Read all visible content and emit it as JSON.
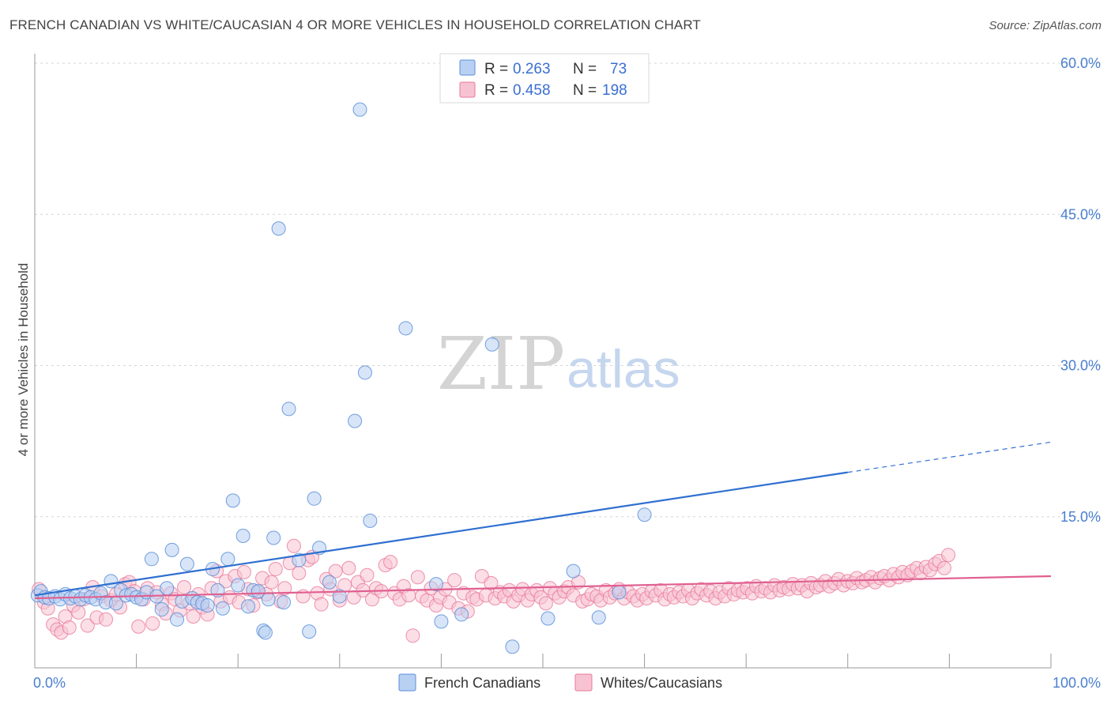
{
  "header": {
    "title": "FRENCH CANADIAN VS WHITE/CAUCASIAN 4 OR MORE VEHICLES IN HOUSEHOLD CORRELATION CHART",
    "source": "Source: ZipAtlas.com"
  },
  "watermark": {
    "zip": "ZIP",
    "atlas": "atlas"
  },
  "legend": {
    "rows": [
      {
        "r_label": "R =",
        "r_value": "0.263",
        "n_label": "N =",
        "n_value": "73"
      },
      {
        "r_label": "R =",
        "r_value": "0.458",
        "n_label": "N =",
        "n_value": "198"
      }
    ]
  },
  "bottom_legend": [
    "French Canadians",
    "Whites/Caucasians"
  ],
  "colors": {
    "blue": "#5b8fd8",
    "blue_fill": "#b8d0f2",
    "pink": "#e8789a",
    "pink_fill": "#f7c3d2",
    "blue_line": "#2f6fd0",
    "pink_line": "#e06090"
  },
  "chart_data": {
    "type": "scatter",
    "xlabel": "",
    "ylabel": "4 or more Vehicles in Household",
    "xlim": [
      0,
      100
    ],
    "ylim": [
      0,
      60
    ],
    "x_tick_labels": [
      "0.0%",
      "100.0%"
    ],
    "y_ticks": [
      15,
      30,
      45,
      60
    ],
    "y_tick_labels": [
      "15.0%",
      "30.0%",
      "45.0%",
      "60.0%"
    ],
    "grid": true,
    "series": [
      {
        "name": "French Canadians",
        "r": 0.263,
        "n": 73,
        "trend": {
          "x0": 0,
          "y0": 7.2,
          "x1": 80,
          "y1": 19.4,
          "dash_to_x": 100,
          "dash_to_y": 22.4
        },
        "points": [
          [
            0.3,
            7.2
          ],
          [
            0.6,
            7.6
          ],
          [
            1.0,
            7.0
          ],
          [
            1.4,
            6.9
          ],
          [
            2.0,
            7.1
          ],
          [
            2.5,
            6.8
          ],
          [
            3.0,
            7.3
          ],
          [
            3.5,
            6.9
          ],
          [
            4.0,
            7.1
          ],
          [
            4.5,
            6.8
          ],
          [
            5.0,
            7.2
          ],
          [
            5.5,
            7.0
          ],
          [
            6.0,
            6.8
          ],
          [
            6.5,
            7.4
          ],
          [
            7.0,
            6.5
          ],
          [
            7.5,
            8.6
          ],
          [
            8.0,
            6.4
          ],
          [
            8.5,
            7.7
          ],
          [
            9.0,
            7.2
          ],
          [
            9.5,
            7.3
          ],
          [
            10.0,
            7.0
          ],
          [
            10.5,
            6.8
          ],
          [
            11.0,
            7.5
          ],
          [
            11.5,
            10.8
          ],
          [
            12.0,
            7.1
          ],
          [
            12.5,
            5.8
          ],
          [
            13.0,
            7.9
          ],
          [
            13.5,
            11.7
          ],
          [
            14.0,
            4.8
          ],
          [
            14.5,
            6.6
          ],
          [
            15.0,
            10.3
          ],
          [
            15.5,
            6.9
          ],
          [
            16.0,
            6.5
          ],
          [
            16.5,
            6.4
          ],
          [
            17.0,
            6.2
          ],
          [
            17.5,
            9.8
          ],
          [
            18.0,
            7.7
          ],
          [
            18.5,
            5.9
          ],
          [
            19.0,
            10.8
          ],
          [
            19.5,
            16.6
          ],
          [
            20.0,
            8.2
          ],
          [
            20.5,
            13.1
          ],
          [
            21.0,
            6.1
          ],
          [
            21.5,
            7.7
          ],
          [
            22.0,
            7.6
          ],
          [
            22.5,
            3.7
          ],
          [
            22.7,
            3.5
          ],
          [
            23.0,
            6.8
          ],
          [
            23.5,
            12.9
          ],
          [
            24.0,
            43.6
          ],
          [
            24.5,
            6.5
          ],
          [
            25.0,
            25.7
          ],
          [
            26.0,
            10.7
          ],
          [
            27.0,
            3.6
          ],
          [
            27.5,
            16.8
          ],
          [
            28.0,
            11.9
          ],
          [
            29.0,
            8.5
          ],
          [
            30.0,
            7.1
          ],
          [
            31.5,
            24.5
          ],
          [
            32.0,
            55.4
          ],
          [
            32.5,
            29.3
          ],
          [
            33.0,
            14.6
          ],
          [
            36.5,
            33.7
          ],
          [
            39.5,
            8.3
          ],
          [
            40.0,
            4.6
          ],
          [
            42.0,
            5.3
          ],
          [
            45.0,
            32.1
          ],
          [
            47.0,
            2.1
          ],
          [
            50.5,
            4.9
          ],
          [
            53.0,
            9.6
          ],
          [
            55.5,
            5.0
          ],
          [
            57.5,
            7.5
          ],
          [
            60.0,
            15.2
          ]
        ]
      },
      {
        "name": "Whites/Caucasians",
        "r": 0.458,
        "n": 198,
        "trend": {
          "x0": 0,
          "y0": 6.9,
          "x1": 100,
          "y1": 9.1
        },
        "points": [
          [
            0.4,
            7.8
          ],
          [
            0.9,
            6.5
          ],
          [
            1.3,
            5.9
          ],
          [
            1.8,
            4.3
          ],
          [
            2.2,
            3.8
          ],
          [
            2.6,
            3.5
          ],
          [
            3.0,
            5.1
          ],
          [
            3.4,
            4.0
          ],
          [
            3.8,
            6.2
          ],
          [
            4.3,
            5.5
          ],
          [
            4.8,
            6.8
          ],
          [
            5.2,
            4.2
          ],
          [
            5.7,
            8.0
          ],
          [
            6.1,
            5.0
          ],
          [
            6.6,
            7.1
          ],
          [
            7.0,
            4.8
          ],
          [
            7.5,
            6.7
          ],
          [
            8.0,
            7.3
          ],
          [
            8.4,
            6.0
          ],
          [
            8.9,
            8.3
          ],
          [
            9.3,
            8.5
          ],
          [
            9.8,
            7.6
          ],
          [
            10.2,
            4.1
          ],
          [
            10.7,
            6.8
          ],
          [
            11.1,
            7.9
          ],
          [
            11.6,
            4.4
          ],
          [
            12.0,
            7.5
          ],
          [
            12.5,
            6.3
          ],
          [
            12.9,
            5.4
          ],
          [
            13.4,
            7.4
          ],
          [
            13.8,
            6.8
          ],
          [
            14.3,
            5.7
          ],
          [
            14.7,
            8.0
          ],
          [
            15.2,
            6.4
          ],
          [
            15.6,
            5.1
          ],
          [
            16.1,
            7.3
          ],
          [
            16.5,
            6.0
          ],
          [
            17.0,
            5.3
          ],
          [
            17.4,
            7.9
          ],
          [
            17.9,
            9.6
          ],
          [
            18.3,
            6.6
          ],
          [
            18.8,
            8.6
          ],
          [
            19.2,
            7.0
          ],
          [
            19.7,
            9.1
          ],
          [
            20.1,
            6.5
          ],
          [
            20.6,
            9.5
          ],
          [
            21.0,
            7.8
          ],
          [
            21.5,
            6.2
          ],
          [
            21.9,
            7.5
          ],
          [
            22.4,
            8.9
          ],
          [
            22.8,
            7.3
          ],
          [
            23.3,
            8.5
          ],
          [
            23.7,
            9.8
          ],
          [
            24.2,
            6.6
          ],
          [
            24.6,
            7.9
          ],
          [
            25.1,
            10.4
          ],
          [
            25.5,
            12.1
          ],
          [
            26.0,
            9.4
          ],
          [
            26.4,
            7.1
          ],
          [
            26.9,
            10.7
          ],
          [
            27.3,
            11.0
          ],
          [
            27.8,
            7.4
          ],
          [
            28.2,
            6.3
          ],
          [
            28.7,
            8.8
          ],
          [
            29.1,
            7.8
          ],
          [
            29.6,
            9.6
          ],
          [
            30.0,
            6.7
          ],
          [
            30.5,
            8.2
          ],
          [
            30.9,
            9.9
          ],
          [
            31.4,
            7.0
          ],
          [
            31.8,
            8.5
          ],
          [
            32.3,
            7.7
          ],
          [
            32.7,
            9.2
          ],
          [
            33.2,
            6.8
          ],
          [
            33.6,
            7.9
          ],
          [
            34.1,
            7.6
          ],
          [
            34.5,
            10.2
          ],
          [
            35.0,
            10.5
          ],
          [
            35.4,
            7.4
          ],
          [
            35.9,
            6.8
          ],
          [
            36.3,
            8.1
          ],
          [
            36.8,
            7.2
          ],
          [
            37.2,
            3.2
          ],
          [
            37.7,
            9.0
          ],
          [
            38.1,
            7.1
          ],
          [
            38.6,
            6.7
          ],
          [
            39.0,
            7.9
          ],
          [
            39.5,
            6.2
          ],
          [
            39.9,
            7.0
          ],
          [
            40.4,
            7.8
          ],
          [
            40.8,
            6.5
          ],
          [
            41.3,
            8.7
          ],
          [
            41.7,
            5.9
          ],
          [
            42.2,
            7.4
          ],
          [
            42.6,
            5.6
          ],
          [
            43.1,
            7.0
          ],
          [
            43.5,
            6.8
          ],
          [
            44.0,
            9.1
          ],
          [
            44.4,
            7.2
          ],
          [
            44.9,
            8.4
          ],
          [
            45.3,
            6.9
          ],
          [
            45.8,
            7.5
          ],
          [
            46.2,
            7.1
          ],
          [
            46.7,
            7.7
          ],
          [
            47.1,
            6.6
          ],
          [
            47.6,
            7.2
          ],
          [
            48.0,
            7.8
          ],
          [
            48.5,
            6.7
          ],
          [
            48.9,
            7.3
          ],
          [
            49.4,
            7.7
          ],
          [
            49.8,
            7.0
          ],
          [
            50.3,
            6.4
          ],
          [
            50.7,
            7.9
          ],
          [
            51.2,
            7.4
          ],
          [
            51.6,
            7.0
          ],
          [
            52.1,
            7.6
          ],
          [
            52.5,
            8.0
          ],
          [
            53.0,
            7.2
          ],
          [
            53.5,
            8.5
          ],
          [
            53.9,
            6.6
          ],
          [
            54.4,
            6.8
          ],
          [
            54.8,
            7.3
          ],
          [
            55.3,
            7.1
          ],
          [
            55.7,
            6.7
          ],
          [
            56.2,
            7.7
          ],
          [
            56.6,
            7.0
          ],
          [
            57.1,
            7.4
          ],
          [
            57.5,
            7.8
          ],
          [
            58.0,
            6.9
          ],
          [
            58.4,
            7.5
          ],
          [
            58.9,
            7.1
          ],
          [
            59.3,
            6.7
          ],
          [
            59.8,
            7.3
          ],
          [
            60.2,
            6.9
          ],
          [
            60.7,
            7.6
          ],
          [
            61.1,
            7.2
          ],
          [
            61.6,
            7.7
          ],
          [
            62.0,
            6.8
          ],
          [
            62.5,
            7.3
          ],
          [
            62.9,
            7.0
          ],
          [
            63.4,
            7.5
          ],
          [
            63.8,
            7.1
          ],
          [
            64.3,
            7.7
          ],
          [
            64.7,
            6.9
          ],
          [
            65.2,
            7.4
          ],
          [
            65.6,
            7.8
          ],
          [
            66.1,
            7.2
          ],
          [
            66.5,
            7.6
          ],
          [
            67.0,
            6.9
          ],
          [
            67.4,
            7.5
          ],
          [
            67.9,
            7.1
          ],
          [
            68.3,
            7.9
          ],
          [
            68.8,
            7.3
          ],
          [
            69.2,
            7.7
          ],
          [
            69.7,
            7.5
          ],
          [
            70.1,
            7.9
          ],
          [
            70.6,
            7.4
          ],
          [
            71.0,
            8.1
          ],
          [
            71.5,
            7.6
          ],
          [
            71.9,
            7.9
          ],
          [
            72.4,
            7.5
          ],
          [
            72.8,
            8.2
          ],
          [
            73.3,
            7.7
          ],
          [
            73.7,
            8.0
          ],
          [
            74.2,
            7.8
          ],
          [
            74.6,
            8.3
          ],
          [
            75.1,
            7.9
          ],
          [
            75.5,
            8.2
          ],
          [
            76.0,
            7.6
          ],
          [
            76.4,
            8.4
          ],
          [
            76.9,
            8.0
          ],
          [
            77.3,
            8.2
          ],
          [
            77.8,
            8.6
          ],
          [
            78.2,
            8.1
          ],
          [
            78.7,
            8.4
          ],
          [
            79.1,
            8.8
          ],
          [
            79.6,
            8.2
          ],
          [
            80.0,
            8.6
          ],
          [
            80.5,
            8.4
          ],
          [
            80.9,
            8.9
          ],
          [
            81.4,
            8.5
          ],
          [
            81.8,
            8.7
          ],
          [
            82.3,
            9.0
          ],
          [
            82.7,
            8.5
          ],
          [
            83.2,
            8.9
          ],
          [
            83.6,
            9.1
          ],
          [
            84.1,
            8.7
          ],
          [
            84.5,
            9.3
          ],
          [
            85.0,
            9.0
          ],
          [
            85.4,
            9.5
          ],
          [
            85.9,
            9.2
          ],
          [
            86.3,
            9.6
          ],
          [
            86.8,
            9.9
          ],
          [
            87.2,
            9.4
          ],
          [
            87.7,
            10.0
          ],
          [
            88.1,
            9.7
          ],
          [
            88.6,
            10.3
          ],
          [
            89.0,
            10.6
          ],
          [
            89.5,
            9.9
          ],
          [
            89.9,
            11.2
          ]
        ]
      }
    ]
  }
}
